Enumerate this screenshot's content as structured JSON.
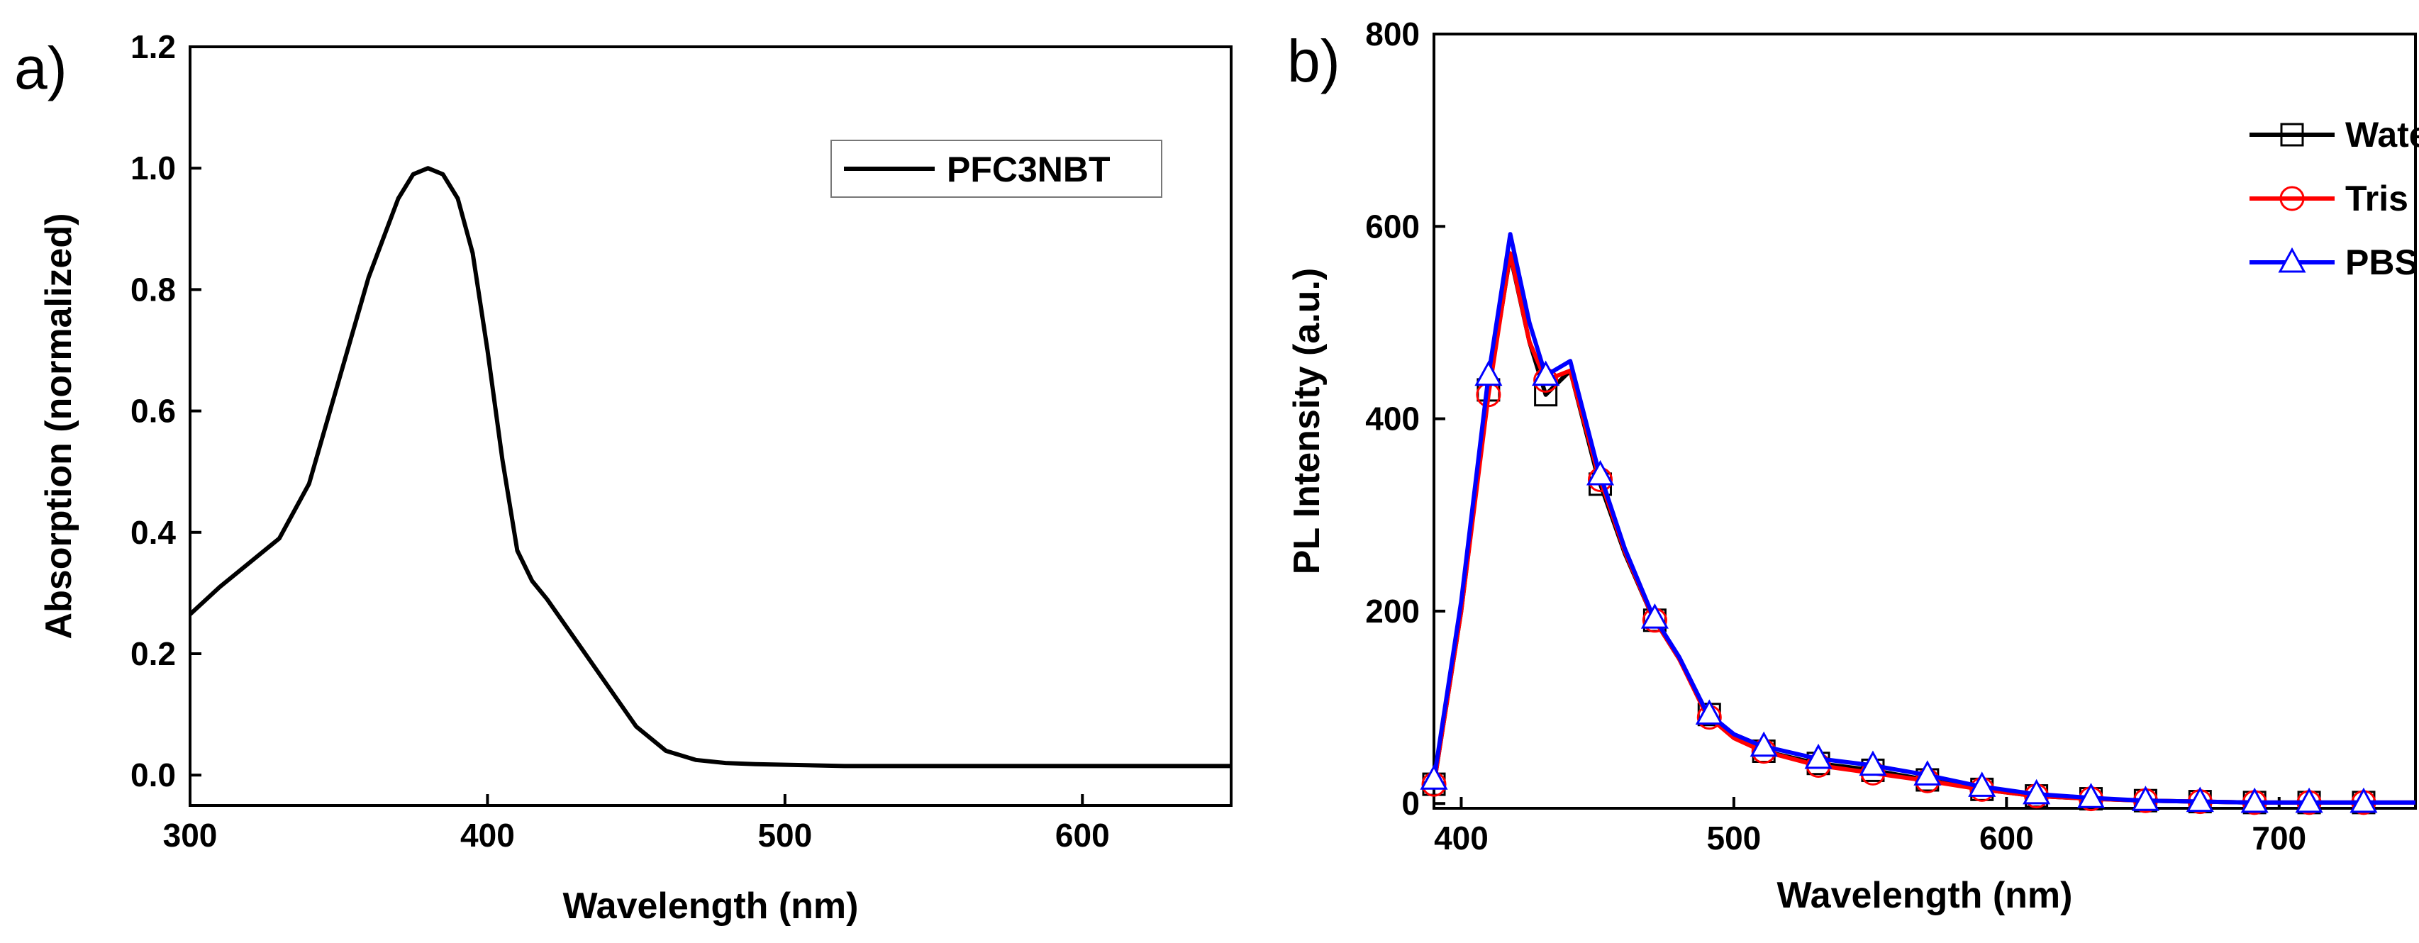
{
  "chart_data": [
    {
      "panel_label": "a)",
      "type": "line",
      "title": "",
      "xlabel": "Wavelength (nm)",
      "ylabel": "Absorption (normalized)",
      "xlim": [
        300,
        650
      ],
      "ylim": [
        -0.05,
        1.2
      ],
      "xticks": [
        300,
        400,
        500,
        600
      ],
      "yticks": [
        0.0,
        0.2,
        0.4,
        0.6,
        0.8,
        1.0,
        1.2
      ],
      "legend_position": "top-right",
      "series": [
        {
          "name": "PFC3NBT",
          "color": "#000000",
          "marker": "none",
          "x": [
            300,
            310,
            320,
            330,
            340,
            350,
            360,
            370,
            375,
            380,
            385,
            390,
            395,
            400,
            405,
            410,
            415,
            420,
            430,
            440,
            450,
            460,
            470,
            480,
            490,
            500,
            510,
            520,
            550,
            600,
            650
          ],
          "y": [
            0.265,
            0.31,
            0.35,
            0.39,
            0.48,
            0.65,
            0.82,
            0.95,
            0.99,
            1.0,
            0.99,
            0.95,
            0.86,
            0.7,
            0.52,
            0.37,
            0.32,
            0.29,
            0.22,
            0.15,
            0.08,
            0.04,
            0.025,
            0.02,
            0.018,
            0.017,
            0.016,
            0.015,
            0.015,
            0.015,
            0.015
          ]
        }
      ]
    },
    {
      "panel_label": "b)",
      "type": "line",
      "title": "",
      "xlabel": "Wavelength (nm)",
      "ylabel": "PL Intensity (a.u.)",
      "xlim": [
        390,
        750
      ],
      "ylim": [
        -5,
        800
      ],
      "xticks": [
        400,
        500,
        600,
        700
      ],
      "yticks": [
        0,
        200,
        400,
        600,
        800
      ],
      "legend_position": "top-right",
      "series": [
        {
          "name": "Water",
          "color": "#000000",
          "marker": "square",
          "x": [
            390,
            400,
            410,
            418,
            425,
            431,
            440,
            450,
            460,
            470,
            480,
            490,
            500,
            510,
            530,
            550,
            570,
            590,
            610,
            630,
            650,
            670,
            690,
            710,
            730,
            750
          ],
          "y": [
            20,
            200,
            430,
            570,
            480,
            425,
            450,
            340,
            260,
            195,
            150,
            95,
            70,
            55,
            42,
            35,
            25,
            15,
            8,
            5,
            3,
            2,
            1,
            1,
            1,
            1
          ]
        },
        {
          "name": "Tris",
          "color": "#ff0000",
          "marker": "circle",
          "x": [
            390,
            400,
            410,
            418,
            425,
            431,
            440,
            450,
            460,
            470,
            480,
            490,
            500,
            510,
            530,
            550,
            570,
            590,
            610,
            630,
            650,
            670,
            690,
            710,
            730,
            750
          ],
          "y": [
            20,
            200,
            425,
            572,
            480,
            440,
            450,
            345,
            262,
            195,
            150,
            92,
            68,
            55,
            40,
            32,
            24,
            15,
            8,
            5,
            3,
            2,
            1,
            1,
            1,
            1
          ]
        },
        {
          "name": "PBS",
          "color": "#0000ff",
          "marker": "triangle",
          "x": [
            390,
            400,
            410,
            418,
            425,
            431,
            440,
            450,
            460,
            470,
            480,
            490,
            500,
            510,
            530,
            550,
            570,
            590,
            610,
            630,
            650,
            670,
            690,
            710,
            730,
            750
          ],
          "y": [
            25,
            210,
            445,
            592,
            500,
            445,
            460,
            350,
            265,
            197,
            152,
            95,
            72,
            60,
            47,
            40,
            30,
            18,
            10,
            6,
            3,
            2,
            1,
            1,
            1,
            1
          ]
        }
      ],
      "marker_x": [
        390,
        410,
        431,
        451,
        471,
        491,
        511,
        531,
        551,
        571,
        591,
        611,
        631,
        651,
        671,
        691,
        711,
        731
      ]
    }
  ]
}
